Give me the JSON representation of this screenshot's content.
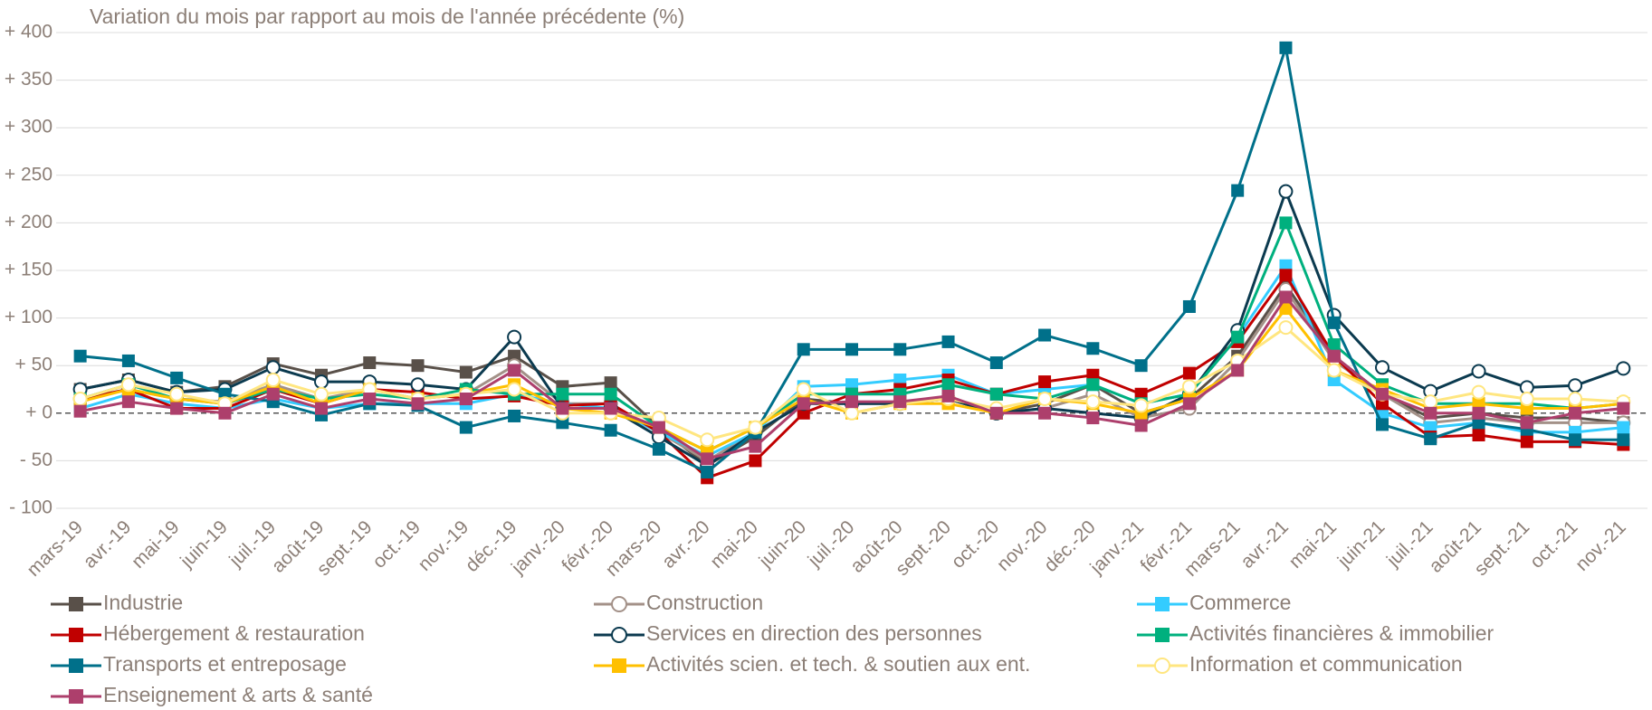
{
  "chart_data": {
    "type": "line",
    "title": "Variation du mois par rapport au mois de l'année précédente (%)",
    "categories": [
      "mars-19",
      "avr.-19",
      "mai-19",
      "juin-19",
      "juil.-19",
      "août-19",
      "sept.-19",
      "oct.-19",
      "nov.-19",
      "déc.-19",
      "janv.-20",
      "févr.-20",
      "mars-20",
      "avr.-20",
      "mai-20",
      "juin-20",
      "juil.-20",
      "août-20",
      "sept.-20",
      "oct.-20",
      "nov.-20",
      "déc.-20",
      "janv.-21",
      "févr.-21",
      "mars-21",
      "avr.-21",
      "mai-21",
      "juin-21",
      "juil.-21",
      "août-21",
      "sept.-21",
      "oct.-21",
      "nov.-21"
    ],
    "ylim": [
      -100,
      400
    ],
    "yticks": [
      {
        "value": -100,
        "label": "- 100"
      },
      {
        "value": -50,
        "label": "- 50"
      },
      {
        "value": 0,
        "label": "+ 0"
      },
      {
        "value": 50,
        "label": "+ 50"
      },
      {
        "value": 100,
        "label": "+ 100"
      },
      {
        "value": 150,
        "label": "+ 150"
      },
      {
        "value": 200,
        "label": "+ 200"
      },
      {
        "value": 250,
        "label": "+ 250"
      },
      {
        "value": 300,
        "label": "+ 300"
      },
      {
        "value": 350,
        "label": "+ 350"
      },
      {
        "value": 400,
        "label": "+ 400"
      }
    ],
    "grid": true,
    "series": [
      {
        "name": "Industrie",
        "color": "#595049",
        "marker": "square",
        "values": [
          25,
          35,
          22,
          28,
          52,
          40,
          53,
          50,
          43,
          60,
          28,
          32,
          -15,
          -55,
          -25,
          15,
          10,
          12,
          15,
          0,
          10,
          30,
          0,
          15,
          60,
          135,
          60,
          20,
          -5,
          0,
          -5,
          -5,
          -10
        ]
      },
      {
        "name": "Construction",
        "color": "#a39188",
        "marker": "circle",
        "values": [
          15,
          25,
          15,
          12,
          30,
          15,
          25,
          15,
          20,
          50,
          10,
          10,
          -20,
          -50,
          -20,
          10,
          10,
          10,
          15,
          0,
          5,
          20,
          -5,
          5,
          55,
          130,
          55,
          20,
          -10,
          -5,
          -10,
          -10,
          -10
        ]
      },
      {
        "name": "Commerce",
        "color": "#33ccff",
        "marker": "square",
        "values": [
          5,
          20,
          10,
          5,
          15,
          5,
          10,
          10,
          10,
          20,
          10,
          5,
          -20,
          -45,
          -20,
          28,
          30,
          35,
          40,
          20,
          25,
          30,
          10,
          20,
          80,
          155,
          35,
          0,
          -15,
          -10,
          -20,
          -20,
          -15
        ]
      },
      {
        "name": "Hébergement & restauration",
        "color": "#c00000",
        "marker": "square",
        "values": [
          15,
          25,
          5,
          5,
          25,
          10,
          25,
          22,
          15,
          18,
          8,
          10,
          -20,
          -68,
          -50,
          0,
          20,
          25,
          35,
          20,
          33,
          40,
          20,
          42,
          75,
          145,
          60,
          10,
          -25,
          -23,
          -30,
          -30,
          -33
        ]
      },
      {
        "name": "Services en direction des personnes",
        "color": "#0b3a4f",
        "marker": "circle",
        "values": [
          25,
          35,
          22,
          25,
          48,
          33,
          33,
          30,
          25,
          80,
          5,
          5,
          -25,
          -55,
          -20,
          10,
          10,
          10,
          15,
          0,
          5,
          0,
          -5,
          20,
          87,
          233,
          103,
          48,
          23,
          44,
          27,
          29,
          47
        ]
      },
      {
        "name": "Activités financières & immobilier",
        "color": "#00b07e",
        "marker": "square",
        "values": [
          15,
          30,
          15,
          10,
          25,
          15,
          20,
          15,
          25,
          20,
          20,
          20,
          -15,
          -40,
          -15,
          20,
          20,
          20,
          30,
          20,
          15,
          30,
          10,
          20,
          80,
          200,
          72,
          30,
          10,
          10,
          10,
          5,
          10
        ]
      },
      {
        "name": "Transports et entreposage",
        "color": "#00708a",
        "marker": "square",
        "values": [
          60,
          55,
          37,
          20,
          12,
          -2,
          10,
          8,
          -15,
          -3,
          -10,
          -18,
          -38,
          -62,
          -20,
          67,
          67,
          67,
          75,
          53,
          82,
          68,
          50,
          112,
          234,
          384,
          95,
          -12,
          -27,
          -10,
          -17,
          -28,
          -28
        ]
      },
      {
        "name": "Activités scien. et tech. & soutien aux ent.",
        "color": "#ffc000",
        "marker": "square",
        "values": [
          12,
          25,
          15,
          10,
          28,
          10,
          25,
          15,
          20,
          30,
          5,
          0,
          -15,
          -40,
          -15,
          15,
          0,
          10,
          10,
          0,
          15,
          10,
          0,
          15,
          45,
          110,
          45,
          25,
          5,
          10,
          5,
          5,
          10
        ]
      },
      {
        "name": "Information et communication",
        "color": "#ffe680",
        "marker": "circle",
        "values": [
          15,
          30,
          20,
          10,
          35,
          20,
          25,
          15,
          20,
          25,
          0,
          0,
          -5,
          -28,
          -15,
          25,
          0,
          10,
          15,
          5,
          15,
          12,
          8,
          28,
          55,
          90,
          45,
          20,
          12,
          22,
          15,
          15,
          12
        ]
      },
      {
        "name": "Enseignement & arts & santé",
        "color": "#ad3f6c",
        "marker": "square",
        "values": [
          2,
          12,
          5,
          0,
          20,
          5,
          15,
          10,
          15,
          45,
          5,
          5,
          -15,
          -48,
          -35,
          10,
          12,
          12,
          18,
          0,
          0,
          -5,
          -13,
          10,
          45,
          122,
          60,
          20,
          0,
          0,
          -10,
          0,
          5
        ]
      }
    ]
  }
}
